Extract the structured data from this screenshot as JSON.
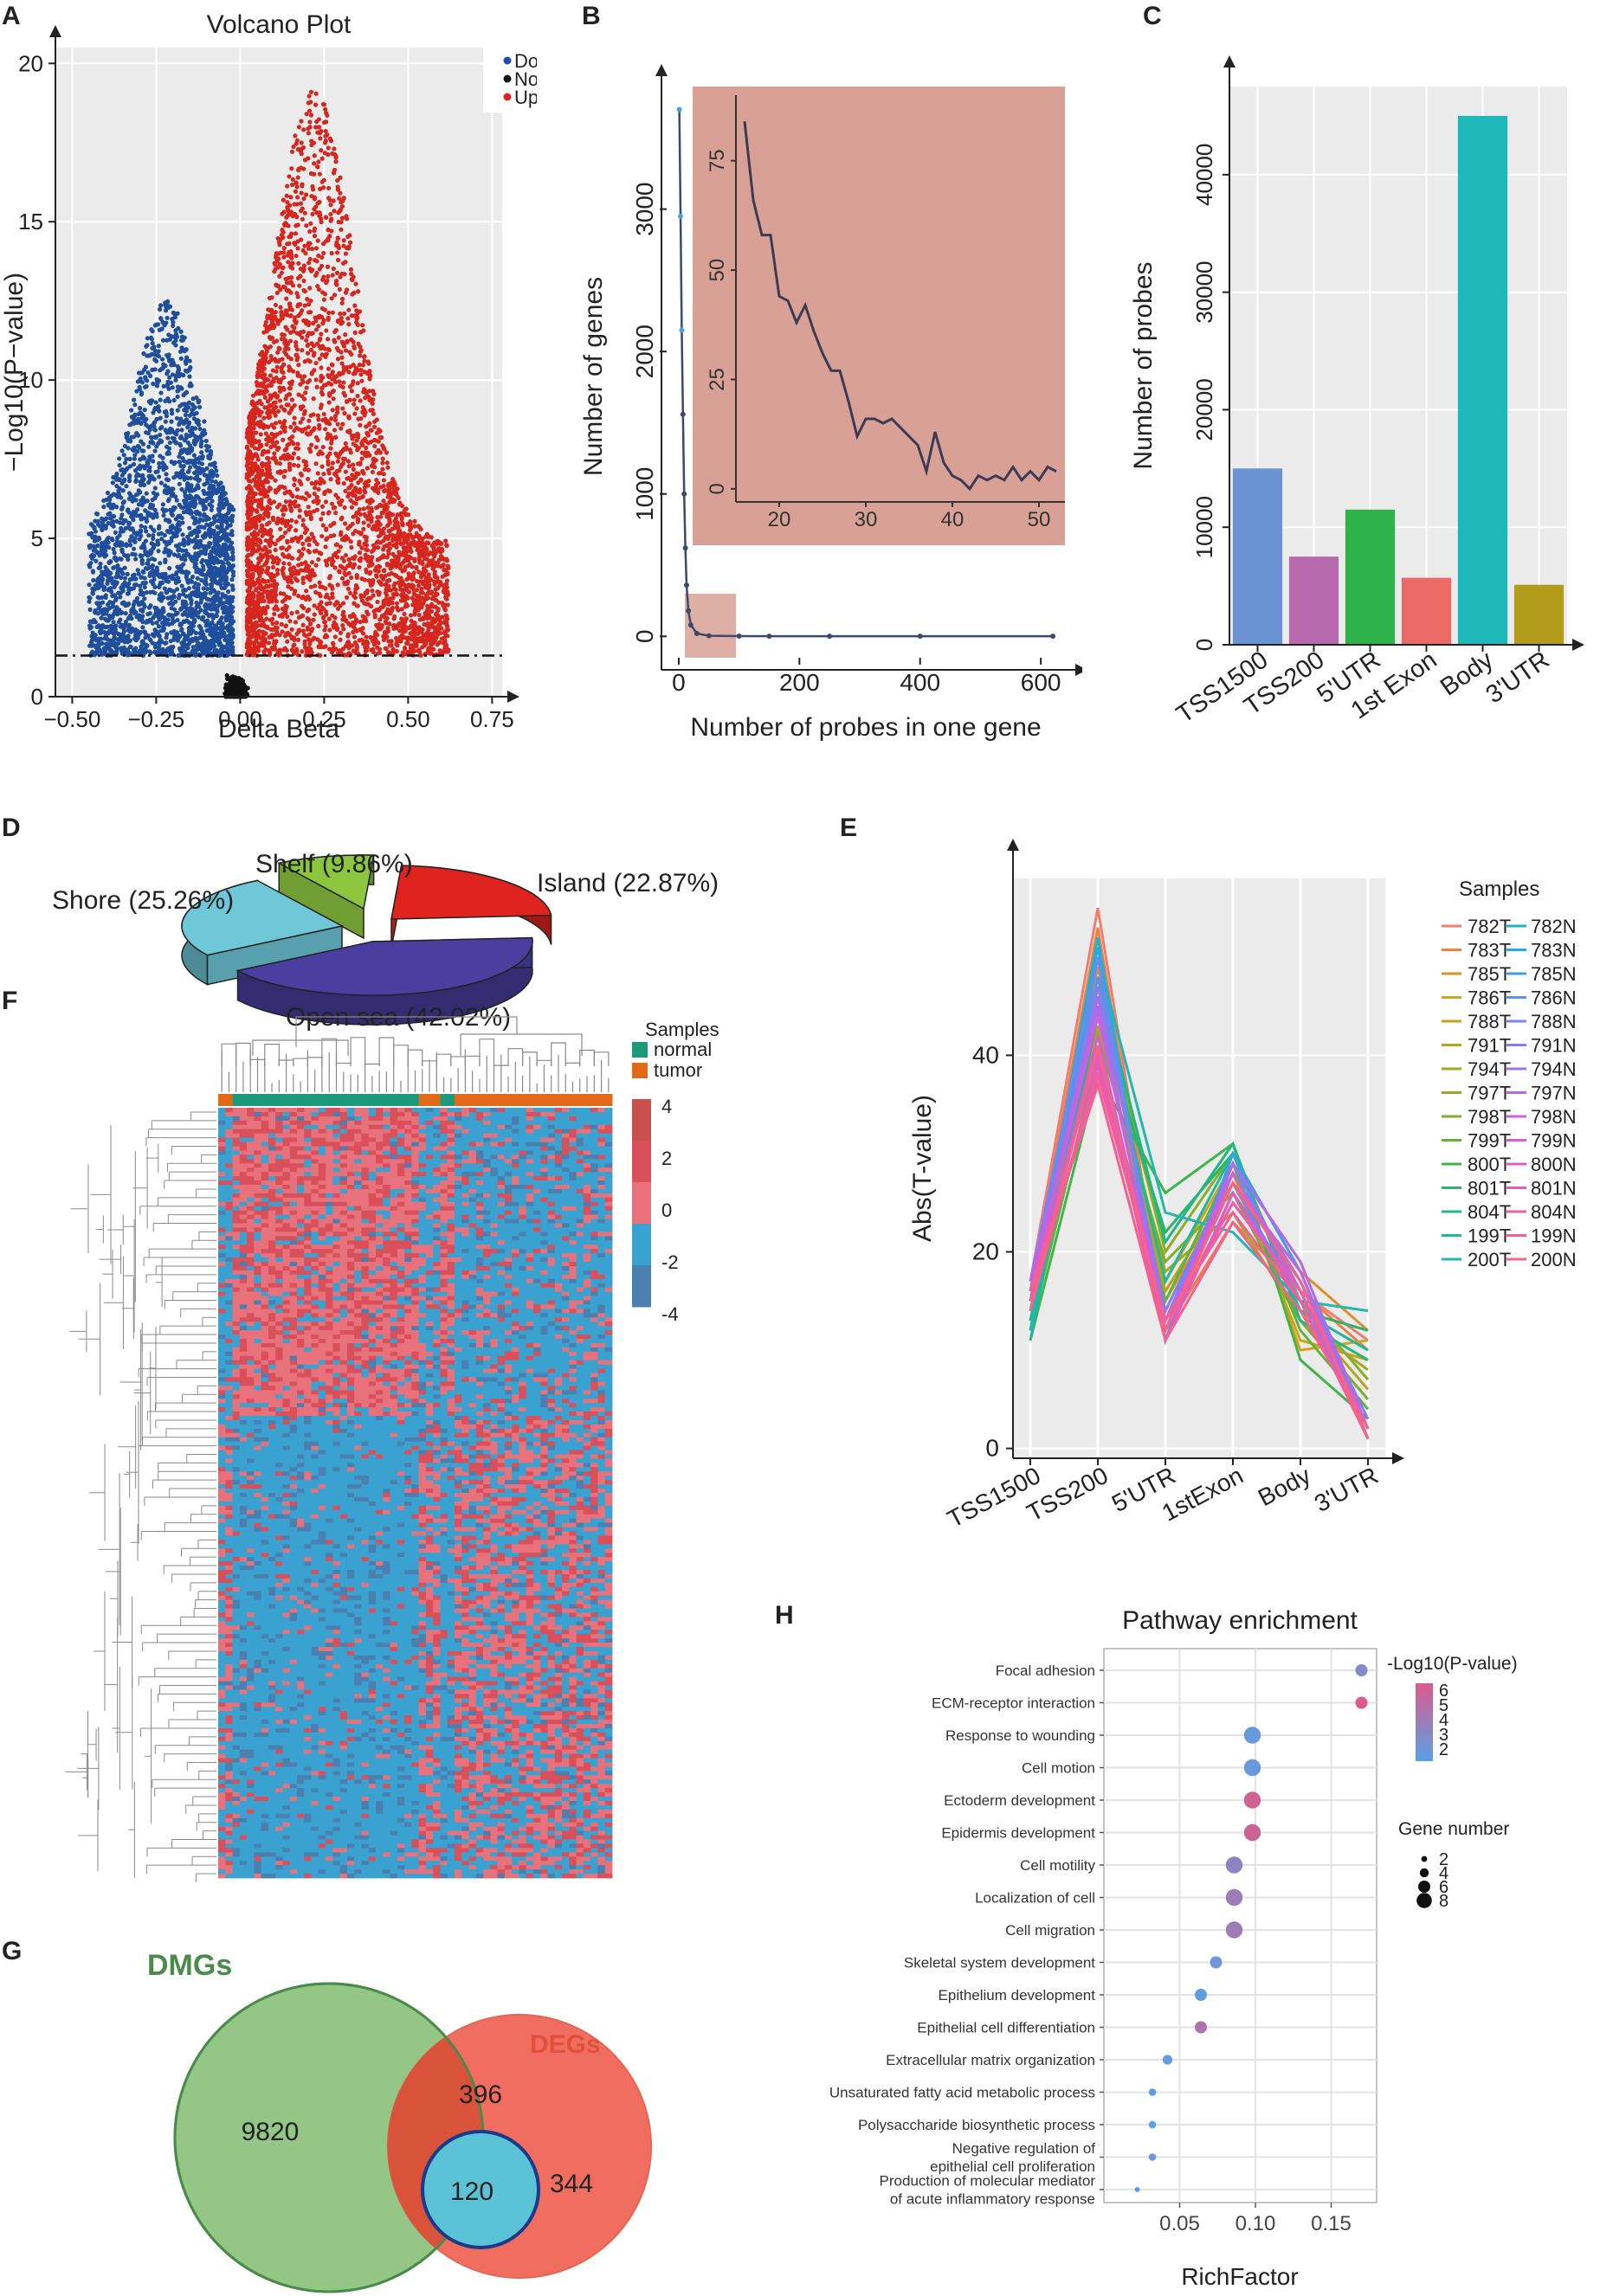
{
  "panels": {
    "A": "A",
    "B": "B",
    "C": "C",
    "D": "D",
    "E": "E",
    "F": "F",
    "G": "G",
    "H": "H"
  },
  "chart_data": [
    {
      "id": "A",
      "type": "scatter",
      "title": "Volcano Plot",
      "xlabel": "Delta Beta",
      "ylabel": "−Log10(P−value)",
      "xlim": [
        -0.55,
        0.78
      ],
      "ylim": [
        0,
        20.5
      ],
      "xticks": [
        -0.5,
        -0.25,
        0,
        0.25,
        0.5,
        0.75
      ],
      "xtick_labels": [
        "−0.50",
        "−0.25",
        "0.00",
        "0.25",
        "0.50",
        "0.75"
      ],
      "yticks": [
        0,
        5,
        10,
        15,
        20
      ],
      "threshold_y": 1.3,
      "legend": [
        "Down",
        "Not",
        "Up"
      ],
      "colors": {
        "Down": "#1f4e9c",
        "Not": "#111111",
        "Up": "#d7261e",
        "panel_bg": "#ebebeb"
      },
      "series": [
        {
          "name": "Down",
          "x_range": [
            -0.45,
            -0.02
          ],
          "y_max": 12.6,
          "color": "#1f4e9c"
        },
        {
          "name": "Not",
          "x_range": [
            -0.12,
            0.15
          ],
          "y_max": 1.3,
          "color": "#111111"
        },
        {
          "name": "Up",
          "x_range": [
            0.02,
            0.62
          ],
          "y_max": 19.3,
          "color": "#d7261e"
        }
      ]
    },
    {
      "id": "B",
      "type": "line",
      "xlabel": "Number of probes in one gene",
      "ylabel": "Number of genes",
      "xlim": [
        -20,
        640
      ],
      "ylim": [
        -150,
        3800
      ],
      "xticks": [
        0,
        200,
        400,
        600
      ],
      "yticks": [
        0,
        1000,
        2000,
        3000
      ],
      "x": [
        1,
        3,
        5,
        7,
        9,
        11,
        13,
        16,
        20,
        30,
        50,
        100,
        150,
        250,
        400,
        620
      ],
      "y": [
        3700,
        2950,
        2150,
        1560,
        1000,
        620,
        360,
        180,
        80,
        20,
        4,
        2,
        1,
        1,
        1,
        1
      ],
      "inset": {
        "xlim": [
          15,
          53
        ],
        "ylim": [
          -3,
          88
        ],
        "xticks": [
          20,
          30,
          40,
          50
        ],
        "yticks": [
          0,
          25,
          50,
          75
        ],
        "x": [
          16,
          17,
          18,
          19,
          20,
          21,
          22,
          23,
          24,
          25,
          26,
          27,
          28,
          29,
          30,
          31,
          32,
          33,
          34,
          35,
          36,
          37,
          38,
          39,
          40,
          41,
          42,
          43,
          44,
          45,
          46,
          47,
          48,
          49,
          50,
          51,
          52
        ],
        "y": [
          84,
          66,
          58,
          58,
          44,
          43,
          38,
          42,
          36,
          31,
          27,
          27,
          20,
          12,
          16,
          16,
          15,
          16,
          14,
          12,
          10,
          4,
          13,
          6,
          3,
          2,
          0,
          3,
          2,
          3,
          2,
          5,
          2,
          4,
          2,
          5,
          4
        ],
        "bg_color": "#d9a195"
      }
    },
    {
      "id": "C",
      "type": "bar",
      "ylabel": "Number of probes",
      "categories": [
        "TSS1500",
        "TSS200",
        "5'UTR",
        "1st Exon",
        "Body",
        "3'UTR"
      ],
      "values": [
        15000,
        7500,
        11500,
        5700,
        45000,
        5100
      ],
      "colors": [
        "#6a93d4",
        "#b86aae",
        "#2db34a",
        "#ec6a66",
        "#1fb8b8",
        "#b39c1a"
      ],
      "ylim": [
        0,
        47500
      ],
      "yticks": [
        0,
        10000,
        20000,
        30000,
        40000
      ]
    },
    {
      "id": "D",
      "type": "pie",
      "categories": [
        "Island",
        "Shore",
        "Shelf",
        "Open sea"
      ],
      "labels": [
        "Island (22.87%)",
        "Shore (25.26%)",
        "Shelf (9.86%)",
        "Open sea (42.02%)"
      ],
      "values": [
        22.87,
        25.26,
        9.86,
        42.02
      ],
      "colors": [
        "#e0231e",
        "#6ec8d8",
        "#8cc63f",
        "#4a3ea0"
      ]
    },
    {
      "id": "E",
      "type": "line",
      "ylabel": "Abs(T-value)",
      "categories": [
        "TSS1500",
        "TSS200",
        "5'UTR",
        "1stExon",
        "Body",
        "3'UTR"
      ],
      "ylim": [
        -1,
        58
      ],
      "yticks": [
        0,
        20,
        40
      ],
      "legend_title": "Samples",
      "legend": [
        "782T",
        "783T",
        "785T",
        "786T",
        "788T",
        "791T",
        "794T",
        "797T",
        "798T",
        "799T",
        "800T",
        "801T",
        "804T",
        "199T",
        "200T",
        "782N",
        "783N",
        "785N",
        "786N",
        "788N",
        "791N",
        "794N",
        "797N",
        "798N",
        "799N",
        "800N",
        "801N",
        "804N",
        "199N",
        "200N"
      ],
      "series_colors": [
        "#f47c6e",
        "#f08040",
        "#e0902a",
        "#d4a21c",
        "#c8a61a",
        "#b3a61c",
        "#a0aa22",
        "#8cad26",
        "#7ab02e",
        "#5fb33a",
        "#3fb54a",
        "#2bb566",
        "#1fb882",
        "#1eb89c",
        "#22b7b0",
        "#20b4c8",
        "#22ace0",
        "#3a9fe8",
        "#5a92ee",
        "#7586f0",
        "#8a7cee",
        "#9e72ec",
        "#b668e8",
        "#c862e0",
        "#d45ed2",
        "#e05cc2",
        "#ea5cb0",
        "#f05ea0",
        "#f46090",
        "#f66484"
      ],
      "series_T": [
        [
          17,
          55,
          13,
          25,
          16,
          11
        ],
        [
          16,
          53,
          12,
          23,
          16,
          10
        ],
        [
          15,
          49,
          15,
          27,
          18,
          12
        ],
        [
          14,
          45,
          17,
          29,
          10,
          11
        ],
        [
          15,
          44,
          14,
          28,
          11,
          9
        ],
        [
          13,
          43,
          16,
          27,
          14,
          6
        ],
        [
          14,
          45,
          18,
          24,
          13,
          8
        ],
        [
          12,
          47,
          20,
          30,
          15,
          7
        ],
        [
          13,
          42,
          19,
          26,
          13,
          5
        ],
        [
          12,
          40,
          15,
          29,
          12,
          4
        ],
        [
          11,
          38,
          26,
          31,
          9,
          3
        ],
        [
          12,
          44,
          22,
          30,
          14,
          12
        ],
        [
          13,
          48,
          21,
          31,
          13,
          9
        ],
        [
          11,
          46,
          17,
          30,
          14,
          10
        ],
        [
          12,
          50,
          24,
          22,
          15,
          14
        ]
      ],
      "series_N": [
        [
          15,
          52,
          11,
          29,
          16,
          2
        ],
        [
          16,
          51,
          12,
          28,
          17,
          1
        ],
        [
          14,
          50,
          11,
          30,
          18,
          2
        ],
        [
          15,
          48,
          13,
          29,
          16,
          1
        ],
        [
          17,
          50,
          12,
          27,
          15,
          2
        ],
        [
          16,
          47,
          14,
          28,
          17,
          3
        ],
        [
          15,
          46,
          11,
          26,
          16,
          1
        ],
        [
          17,
          45,
          12,
          29,
          19,
          2
        ],
        [
          16,
          44,
          13,
          27,
          18,
          1
        ],
        [
          15,
          42,
          12,
          28,
          16,
          2
        ],
        [
          16,
          40,
          11,
          26,
          15,
          1
        ],
        [
          14,
          39,
          12,
          25,
          16,
          2
        ],
        [
          15,
          38,
          13,
          24,
          15,
          1
        ],
        [
          16,
          37,
          11,
          23,
          14,
          2
        ],
        [
          14,
          41,
          12,
          27,
          17,
          1
        ]
      ]
    },
    {
      "id": "F",
      "type": "heatmap",
      "legend_title": "Samples",
      "legend": [
        "normal",
        "tumor"
      ],
      "colors": {
        "normal": "#1d9a7a",
        "tumor": "#e06a1a"
      },
      "scale_ticks": [
        "4",
        "2",
        "0",
        "-2",
        "-4"
      ],
      "scale_colors": [
        "#c8504e",
        "#d94f5a",
        "#e8727c",
        "#3aa2d0",
        "#4a7fb0"
      ]
    },
    {
      "id": "G",
      "type": "other",
      "sets": [
        "DMGs",
        "DEGs"
      ],
      "values": {
        "DMGs_only": "9820",
        "overlap": "396",
        "core": "120",
        "DEGs_only": "344"
      },
      "colors": {
        "DMGs": "#8fc57f",
        "DEGs": "#ef5a4a",
        "overlap": "#d9533a",
        "core": "#5cc3d6"
      }
    },
    {
      "id": "H",
      "type": "scatter",
      "title": "Pathway enrichment",
      "xlabel": "RichFactor",
      "xlim": [
        0.0,
        0.18
      ],
      "xticks": [
        0.05,
        0.1,
        0.15
      ],
      "xtick_labels": [
        "0.05",
        "0.10",
        "0.15"
      ],
      "categories": [
        "Focal adhesion",
        "ECM-receptor interaction",
        "Response to wounding",
        "Cell motion",
        "Ectoderm development",
        "Epidermis development",
        "Cell motility",
        "Localization of cell",
        "Cell migration",
        "Skeletal system development",
        "Epithelium development",
        "Epithelial cell differentiation",
        "Extracellular matrix organization",
        "Unsaturated fatty acid metabolic process",
        "Polysaccharide biosynthetic process",
        "Negative regulation of epithelial cell proliferation",
        "Production of molecular mediator of acute inflammatory response"
      ],
      "category_lines": [
        [
          "Focal adhesion"
        ],
        [
          "ECM-receptor interaction"
        ],
        [
          "Response to wounding"
        ],
        [
          "Cell motion"
        ],
        [
          "Ectoderm development"
        ],
        [
          "Epidermis development"
        ],
        [
          "Cell motility"
        ],
        [
          "Localization of cell"
        ],
        [
          "Cell migration"
        ],
        [
          "Skeletal system development"
        ],
        [
          "Epithelium development"
        ],
        [
          "Epithelial cell differentiation"
        ],
        [
          "Extracellular matrix organization"
        ],
        [
          "Unsaturated fatty acid metabolic process"
        ],
        [
          "Polysaccharide biosynthetic process"
        ],
        [
          "Negative regulation of",
          "epithelial cell proliferation"
        ],
        [
          "Production of molecular mediator",
          "of acute inflammatory response"
        ]
      ],
      "x": [
        0.17,
        0.17,
        0.098,
        0.098,
        0.098,
        0.098,
        0.086,
        0.086,
        0.086,
        0.074,
        0.064,
        0.064,
        0.042,
        0.032,
        0.032,
        0.032,
        0.022
      ],
      "neglog10p": [
        3.2,
        6.0,
        2.4,
        2.4,
        5.6,
        5.5,
        3.6,
        4.0,
        4.1,
        2.6,
        2.3,
        4.6,
        2.2,
        2.0,
        2.0,
        2.6,
        2.0
      ],
      "gene_number": [
        4,
        4,
        6,
        6,
        6,
        6,
        6,
        6,
        6,
        4,
        4,
        4,
        3,
        2,
        2,
        2,
        1
      ],
      "color_legend_title": "-Log10(P-value)",
      "color_ticks": [
        "6",
        "5",
        "4",
        "3",
        "2"
      ],
      "size_legend_title": "Gene number",
      "size_ticks": [
        "2",
        "4",
        "6",
        "8"
      ]
    }
  ]
}
